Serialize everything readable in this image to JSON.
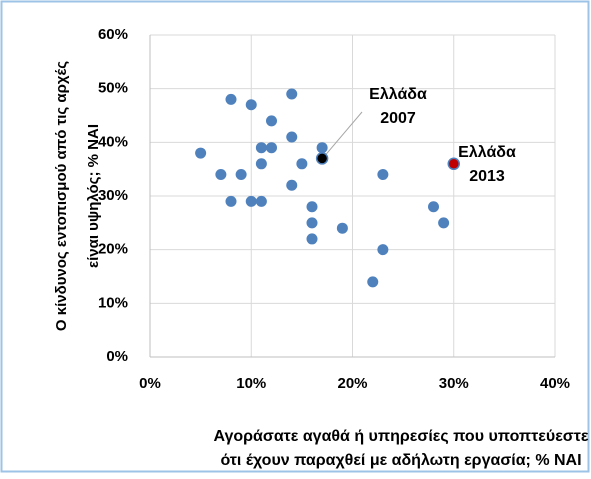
{
  "chart_data": {
    "type": "scatter",
    "x_label": [
      "Αγοράσατε αγαθά ή υπηρεσίες που υποπτεύεστε",
      "ότι έχουν παραχθεί με αδήλωτη εργασία; % ΝΑΙ"
    ],
    "y_label": [
      "Ο κίνδυνος εντοπισμού από τις αρχές",
      "είναι υψηλός; % ΝΑΙ"
    ],
    "series": [
      {
        "color": "#4f81bd",
        "x": [
          5,
          7,
          8,
          8,
          9,
          10,
          10,
          11,
          11,
          11,
          12,
          12,
          14,
          14,
          14,
          15,
          16,
          16,
          16,
          17,
          19,
          22,
          23,
          23,
          28,
          29
        ],
        "values": [
          38,
          34,
          48,
          29,
          34,
          47,
          29,
          39,
          36,
          29,
          44,
          39,
          49,
          41,
          32,
          36,
          28,
          25,
          22,
          39,
          24,
          14,
          34,
          20,
          28,
          25
        ]
      },
      {
        "color": "#000000",
        "x": [
          17
        ],
        "values": [
          37
        ]
      },
      {
        "color": "#c00000",
        "x": [
          30
        ],
        "values": [
          36
        ]
      }
    ],
    "annotations": [
      [
        "Ελλάδα",
        "2007"
      ],
      [
        "Ελλάδα",
        "2013"
      ]
    ],
    "xlim": [
      0,
      40
    ],
    "xticks": [
      {
        "value": 0,
        "label": "0%"
      },
      {
        "value": 10,
        "label": "10%"
      },
      {
        "value": 20,
        "label": "20%"
      },
      {
        "value": 30,
        "label": "30%"
      },
      {
        "value": 40,
        "label": "40%"
      }
    ],
    "ylim": [
      0,
      60
    ],
    "yticks": [
      {
        "value": 0,
        "label": "0%"
      },
      {
        "value": 10,
        "label": "10%"
      },
      {
        "value": 20,
        "label": "20%"
      },
      {
        "value": 30,
        "label": "30%"
      },
      {
        "value": 40,
        "label": "40%"
      },
      {
        "value": 50,
        "label": "50%"
      },
      {
        "value": 60,
        "label": "60%"
      }
    ],
    "grid": true
  }
}
